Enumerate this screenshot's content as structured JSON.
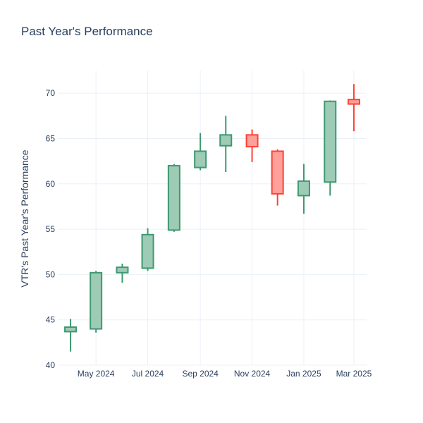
{
  "chart_data": {
    "type": "candlestick",
    "title": "Past Year's Performance",
    "ylabel": "VTR's Past Year's Performance",
    "xlabel": "",
    "ylim": [
      40,
      72.5
    ],
    "yticks": [
      40,
      45,
      50,
      55,
      60,
      65,
      70
    ],
    "xlim": [
      "2024-03-17",
      "2025-03-16"
    ],
    "xticks": [
      {
        "date": "2024-05-01",
        "label": "May 2024"
      },
      {
        "date": "2024-07-01",
        "label": "Jul 2024"
      },
      {
        "date": "2024-09-01",
        "label": "Sep 2024"
      },
      {
        "date": "2024-11-01",
        "label": "Nov 2024"
      },
      {
        "date": "2025-01-01",
        "label": "Jan 2025"
      },
      {
        "date": "2025-03-01",
        "label": "Mar 2025"
      }
    ],
    "grid": true,
    "increasing_color": "#3d9970",
    "increasing_fill": "#9ecbb5",
    "decreasing_color": "#ff4136",
    "decreasing_fill": "#ffa09a",
    "candles": [
      {
        "date": "2024-04-01",
        "open": 43.7,
        "high": 45.1,
        "low": 41.5,
        "close": 44.2
      },
      {
        "date": "2024-05-01",
        "open": 44.0,
        "high": 50.4,
        "low": 43.6,
        "close": 50.2
      },
      {
        "date": "2024-06-01",
        "open": 50.2,
        "high": 51.2,
        "low": 49.1,
        "close": 50.8
      },
      {
        "date": "2024-07-01",
        "open": 50.7,
        "high": 55.1,
        "low": 50.4,
        "close": 54.4
      },
      {
        "date": "2024-08-01",
        "open": 54.9,
        "high": 62.2,
        "low": 54.7,
        "close": 62.0
      },
      {
        "date": "2024-09-01",
        "open": 61.8,
        "high": 65.6,
        "low": 61.5,
        "close": 63.6
      },
      {
        "date": "2024-10-01",
        "open": 64.2,
        "high": 67.5,
        "low": 61.3,
        "close": 65.4
      },
      {
        "date": "2024-11-01",
        "open": 65.4,
        "high": 66.0,
        "low": 62.4,
        "close": 64.1
      },
      {
        "date": "2024-12-01",
        "open": 63.6,
        "high": 63.8,
        "low": 57.6,
        "close": 58.9
      },
      {
        "date": "2025-01-01",
        "open": 58.7,
        "high": 62.2,
        "low": 56.7,
        "close": 60.3
      },
      {
        "date": "2025-02-01",
        "open": 60.2,
        "high": 69.2,
        "low": 58.7,
        "close": 69.1
      },
      {
        "date": "2025-03-01",
        "open": 69.3,
        "high": 71.0,
        "low": 65.8,
        "close": 68.8
      }
    ]
  }
}
